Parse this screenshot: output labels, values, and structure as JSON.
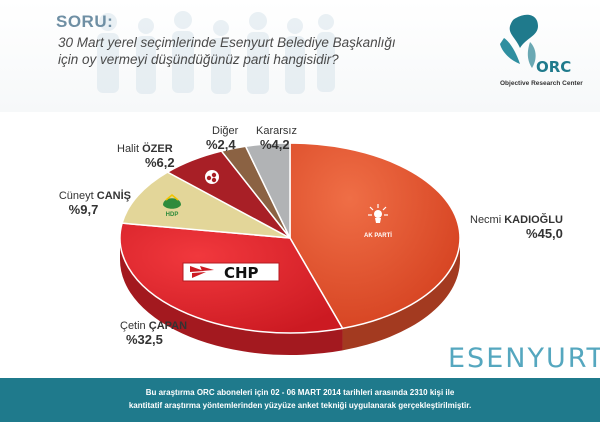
{
  "header": {
    "soru_label": "SORU:",
    "question_line1": "30 Mart yerel seçimlerinde Esenyurt Belediye Başkanlığı",
    "question_line2": "için oy vermeyi düşündüğünüz parti hangisidir?"
  },
  "logo": {
    "text": "ORC",
    "caption": "Objective Research Center"
  },
  "chart_data": {
    "type": "pie",
    "title": "",
    "slices": [
      {
        "candidate": "Necmi",
        "surname": "KADIOĞLU",
        "value": 45.0,
        "label": "%45,0",
        "party": "AK PARTİ",
        "color": "#e2502c"
      },
      {
        "candidate": "Çetin",
        "surname": "ÇAPAN",
        "value": 32.5,
        "label": "%32,5",
        "party": "CHP",
        "color": "#e3232b"
      },
      {
        "candidate": "Cüneyt",
        "surname": "CANİŞ",
        "value": 9.7,
        "label": "%9,7",
        "party": "HDP",
        "color": "#e3d699"
      },
      {
        "candidate": "Halit",
        "surname": "ÖZER",
        "value": 6.2,
        "label": "%6,2",
        "party": "MHP",
        "color": "#a81f26"
      },
      {
        "candidate": "Diğer",
        "surname": "",
        "value": 2.4,
        "label": "%2,4",
        "party": "",
        "color": "#8b6243"
      },
      {
        "candidate": "Kararsız",
        "surname": "",
        "value": 4.2,
        "label": "%4,2",
        "party": "",
        "color": "#b1b3b5"
      }
    ]
  },
  "labels": {
    "necmi_first": "Necmi",
    "necmi_last": "KADIOĞLU",
    "necmi_pct": "%45,0",
    "cetin_first": "Çetin",
    "cetin_last": "ÇAPAN",
    "cetin_pct": "%32,5",
    "cuneyt_first": "Cüneyt",
    "cuneyt_last": "CANİŞ",
    "cuneyt_pct": "%9,7",
    "halit_first": "Halit",
    "halit_last": "ÖZER",
    "halit_pct": "%6,2",
    "diger_name": "Diğer",
    "diger_pct": "%2,4",
    "kararsiz_name": "Kararsız",
    "kararsiz_pct": "%4,2"
  },
  "party_marks": {
    "akp": "AK PARTİ",
    "chp": "CHP",
    "hdp": "HDP"
  },
  "brand": "ESENYURT",
  "footer": {
    "line1": "Bu araştırma ORC aboneleri için 02 - 06 MART 2014 tarihleri arasında  2310 kişi ile",
    "line2": "kantitatif araştırma yöntemlerinden yüzyüze anket tekniği  uygulanarak gerçekleştirilmiştir."
  },
  "colors": {
    "header_accent": "#6f8fa4",
    "footer_bg": "#1f7a8c",
    "brand_color": "#55a7bf",
    "logo_teal": "#1f7a8c"
  }
}
